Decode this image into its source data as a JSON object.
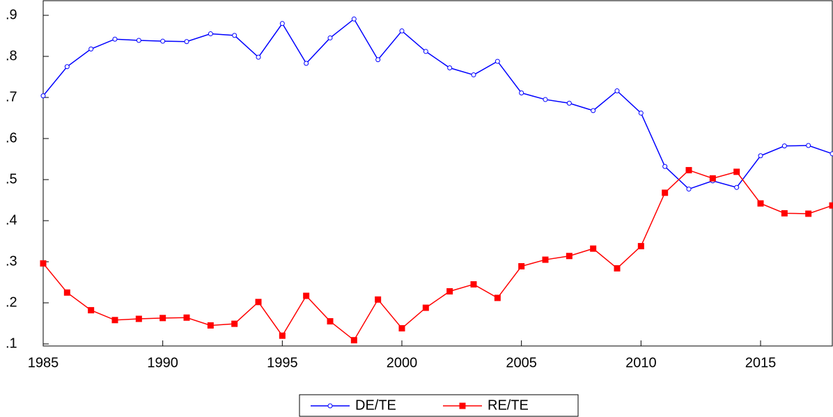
{
  "chart_data": {
    "type": "line",
    "x": [
      1985,
      1986,
      1987,
      1988,
      1989,
      1990,
      1991,
      1992,
      1993,
      1994,
      1995,
      1996,
      1997,
      1998,
      1999,
      2000,
      2001,
      2002,
      2003,
      2004,
      2005,
      2006,
      2007,
      2008,
      2009,
      2010,
      2011,
      2012,
      2013,
      2014,
      2015,
      2016,
      2017,
      2018
    ],
    "series": [
      {
        "name": "DE/TE",
        "color": "#0000ff",
        "marker": "circle",
        "values": [
          0.704,
          0.775,
          0.818,
          0.842,
          0.839,
          0.837,
          0.836,
          0.855,
          0.851,
          0.798,
          0.88,
          0.783,
          0.845,
          0.891,
          0.792,
          0.862,
          0.812,
          0.772,
          0.755,
          0.788,
          0.711,
          0.695,
          0.686,
          0.668,
          0.716,
          0.662,
          0.532,
          0.477,
          0.497,
          0.481,
          0.558,
          0.582,
          0.583,
          0.563
        ]
      },
      {
        "name": "RE/TE",
        "color": "#ff0000",
        "marker": "square",
        "values": [
          0.296,
          0.225,
          0.182,
          0.158,
          0.161,
          0.163,
          0.164,
          0.145,
          0.149,
          0.202,
          0.12,
          0.217,
          0.155,
          0.109,
          0.208,
          0.138,
          0.188,
          0.228,
          0.245,
          0.212,
          0.289,
          0.305,
          0.314,
          0.332,
          0.284,
          0.338,
          0.468,
          0.523,
          0.503,
          0.519,
          0.442,
          0.418,
          0.417,
          0.437
        ]
      }
    ],
    "xlim": [
      1985,
      2018
    ],
    "xticks": [
      1985,
      1990,
      1995,
      2000,
      2005,
      2010,
      2015
    ],
    "ylim": [
      0.1,
      0.9
    ],
    "yticks": [
      {
        "value": 0.1,
        "label": ".1"
      },
      {
        "value": 0.2,
        "label": ".2"
      },
      {
        "value": 0.3,
        "label": ".3"
      },
      {
        "value": 0.4,
        "label": ".4"
      },
      {
        "value": 0.5,
        "label": ".5"
      },
      {
        "value": 0.6,
        "label": ".6"
      },
      {
        "value": 0.7,
        "label": ".7"
      },
      {
        "value": 0.8,
        "label": ".8"
      },
      {
        "value": 0.9,
        "label": ".9"
      }
    ],
    "grid": false,
    "legend": "bottom"
  }
}
